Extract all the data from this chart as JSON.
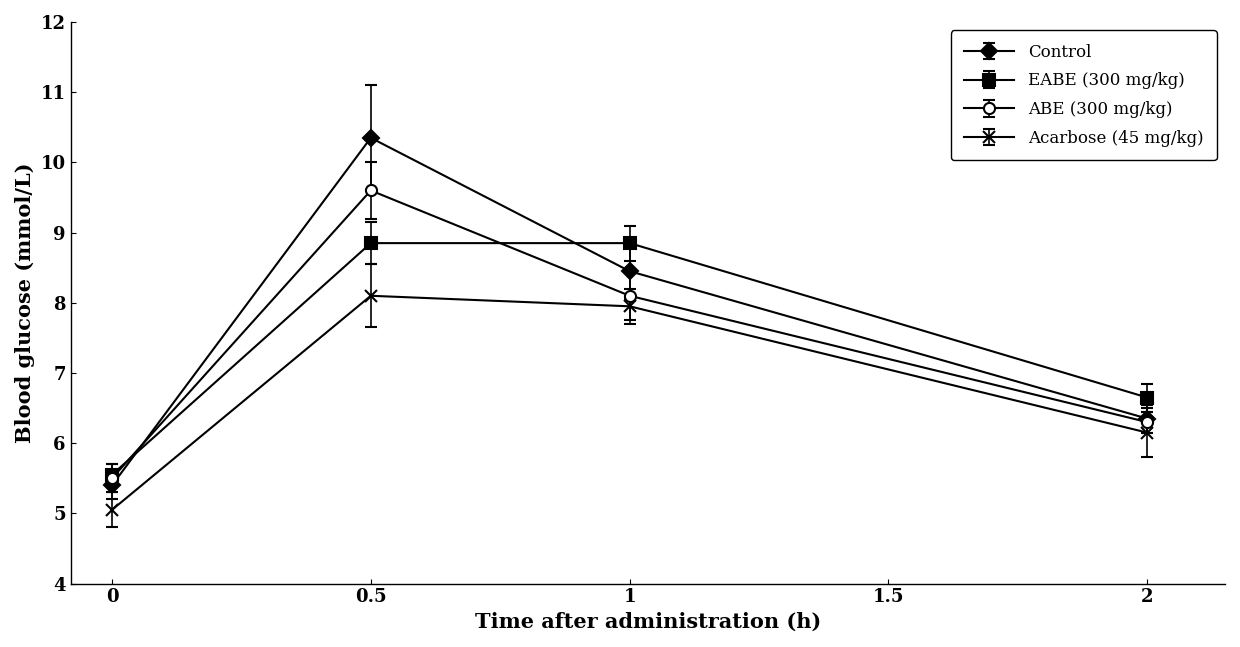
{
  "x": [
    0,
    0.5,
    1,
    2
  ],
  "series": {
    "Control": {
      "y": [
        5.4,
        10.35,
        8.45,
        6.35
      ],
      "yerr": [
        0.2,
        0.75,
        0.4,
        0.2
      ],
      "marker": "D",
      "color": "#000000",
      "markersize": 8,
      "fillstyle": "full"
    },
    "EABE (300 mg/kg)": {
      "y": [
        5.55,
        8.85,
        8.85,
        6.65
      ],
      "yerr": [
        0.15,
        0.3,
        0.25,
        0.2
      ],
      "marker": "s",
      "color": "#000000",
      "markersize": 8,
      "fillstyle": "full"
    },
    "ABE (300 mg/kg)": {
      "y": [
        5.5,
        9.6,
        8.1,
        6.3
      ],
      "yerr": [
        0.2,
        0.4,
        0.35,
        0.15
      ],
      "marker": "o",
      "color": "#000000",
      "markersize": 8,
      "fillstyle": "none"
    },
    "Acarbose (45 mg/kg)": {
      "y": [
        5.05,
        8.1,
        7.95,
        6.15
      ],
      "yerr": [
        0.25,
        0.45,
        0.25,
        0.35
      ],
      "marker": "x",
      "color": "#000000",
      "markersize": 8,
      "fillstyle": "full"
    }
  },
  "xlabel": "Time after administration (h)",
  "ylabel": "Blood glucose (mmol/L)",
  "xlim": [
    -0.08,
    2.15
  ],
  "ylim": [
    4,
    12
  ],
  "yticks": [
    4,
    5,
    6,
    7,
    8,
    9,
    10,
    11,
    12
  ],
  "xticks": [
    0,
    0.5,
    1,
    1.5,
    2
  ],
  "xticklabels": [
    "0",
    "0.5",
    "1",
    "1.5",
    "2"
  ],
  "legend_loc": "upper right",
  "background_color": "#ffffff",
  "capsize": 4,
  "linewidth": 1.5,
  "fontsize_labels": 15,
  "fontsize_ticks": 13,
  "fontsize_legend": 12,
  "font_family": "serif"
}
